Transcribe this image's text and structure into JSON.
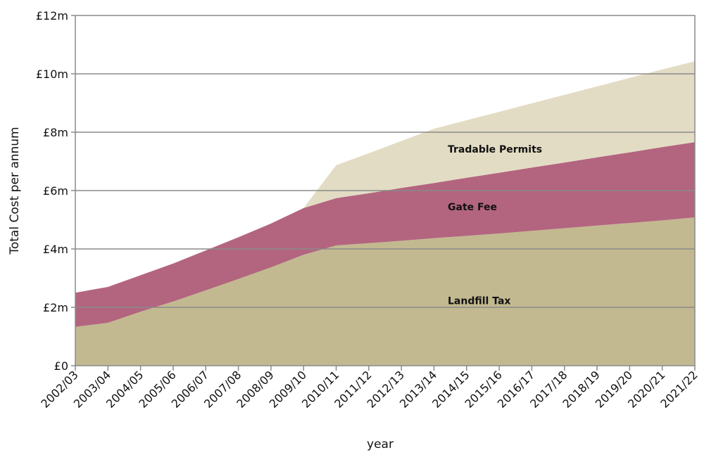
{
  "chart_data": {
    "type": "stacked_area",
    "x_label": "year",
    "y_label": "Total Cost per annum",
    "categories": [
      "2002/03",
      "2003/04",
      "2004/05",
      "2005/06",
      "2006/07",
      "2007/08",
      "2008/09",
      "2009/10",
      "2010/11",
      "2011/12",
      "2012/13",
      "2013/14",
      "2014/15",
      "2015/16",
      "2016/17",
      "2017/18",
      "2018/19",
      "2019/20",
      "2020/21",
      "2021/22"
    ],
    "series": [
      {
        "name": "Landfill Tax",
        "color": "#c2b990",
        "values": [
          1.33,
          1.47,
          1.85,
          2.2,
          2.58,
          2.97,
          3.37,
          3.8,
          4.12,
          4.2,
          4.28,
          4.37,
          4.45,
          4.53,
          4.62,
          4.71,
          4.8,
          4.89,
          4.98,
          5.08
        ]
      },
      {
        "name": "Gate Fee",
        "color": "#b3657f",
        "values": [
          1.17,
          1.23,
          1.25,
          1.3,
          1.37,
          1.43,
          1.5,
          1.6,
          1.62,
          1.71,
          1.81,
          1.89,
          1.99,
          2.08,
          2.17,
          2.25,
          2.34,
          2.42,
          2.51,
          2.58
        ]
      },
      {
        "name": "Tradable Permits",
        "color": "#e3dcc4",
        "values": [
          0,
          0,
          0,
          0,
          0,
          0,
          0,
          0,
          1.13,
          1.37,
          1.61,
          1.86,
          1.97,
          2.09,
          2.2,
          2.32,
          2.43,
          2.55,
          2.66,
          2.77
        ]
      }
    ],
    "ylim": [
      0,
      12
    ],
    "yticks": [
      {
        "value": 0,
        "label": "£0"
      },
      {
        "value": 2,
        "label": "£2m"
      },
      {
        "value": 4,
        "label": "£4m"
      },
      {
        "value": 6,
        "label": "£6m"
      },
      {
        "value": 8,
        "label": "£8m"
      },
      {
        "value": 10,
        "label": "£10m"
      },
      {
        "value": 12,
        "label": "£12m"
      }
    ],
    "grid": true
  }
}
